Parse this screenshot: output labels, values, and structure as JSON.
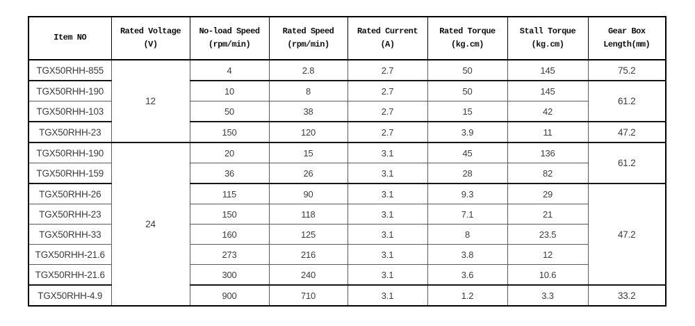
{
  "table": {
    "headers": [
      {
        "line1": "Item NO",
        "line2": ""
      },
      {
        "line1": "Rated Voltage",
        "line2": "(V)"
      },
      {
        "line1": "No-load Speed",
        "line2": "(rpm/min)"
      },
      {
        "line1": "Rated Speed",
        "line2": "(rpm/min)"
      },
      {
        "line1": "Rated Current",
        "line2": "(A)"
      },
      {
        "line1": "Rated Torque",
        "line2": "(kg.cm)"
      },
      {
        "line1": "Stall Torque",
        "line2": "(kg.cm)"
      },
      {
        "line1": "Gear Box",
        "line2": "Length(mm)"
      }
    ],
    "rows": [
      {
        "item": "TGX50RHH-855",
        "no_load_speed": "4",
        "rated_speed": "2.8",
        "rated_current": "2.7",
        "rated_torque": "50",
        "stall_torque": "145"
      },
      {
        "item": "TGX50RHH-190",
        "no_load_speed": "10",
        "rated_speed": "8",
        "rated_current": "2.7",
        "rated_torque": "50",
        "stall_torque": "145"
      },
      {
        "item": "TGX50RHH-103",
        "no_load_speed": "50",
        "rated_speed": "38",
        "rated_current": "2.7",
        "rated_torque": "15",
        "stall_torque": "42"
      },
      {
        "item": "TGX50RHH-23",
        "no_load_speed": "150",
        "rated_speed": "120",
        "rated_current": "2.7",
        "rated_torque": "3.9",
        "stall_torque": "11"
      },
      {
        "item": "TGX50RHH-190",
        "no_load_speed": "20",
        "rated_speed": "15",
        "rated_current": "3.1",
        "rated_torque": "45",
        "stall_torque": "136"
      },
      {
        "item": "TGX50RHH-159",
        "no_load_speed": "36",
        "rated_speed": "26",
        "rated_current": "3.1",
        "rated_torque": "28",
        "stall_torque": "82"
      },
      {
        "item": "TGX50RHH-26",
        "no_load_speed": "115",
        "rated_speed": "90",
        "rated_current": "3.1",
        "rated_torque": "9.3",
        "stall_torque": "29"
      },
      {
        "item": "TGX50RHH-23",
        "no_load_speed": "150",
        "rated_speed": "118",
        "rated_current": "3.1",
        "rated_torque": "7.1",
        "stall_torque": "21"
      },
      {
        "item": "TGX50RHH-33",
        "no_load_speed": "160",
        "rated_speed": "125",
        "rated_current": "3.1",
        "rated_torque": "8",
        "stall_torque": "23.5"
      },
      {
        "item": "TGX50RHH-21.6",
        "no_load_speed": "273",
        "rated_speed": "216",
        "rated_current": "3.1",
        "rated_torque": "3.8",
        "stall_torque": "12"
      },
      {
        "item": "TGX50RHH-21.6",
        "no_load_speed": "300",
        "rated_speed": "240",
        "rated_current": "3.1",
        "rated_torque": "3.6",
        "stall_torque": "10.6"
      },
      {
        "item": "TGX50RHH-4.9",
        "no_load_speed": "900",
        "rated_speed": "710",
        "rated_current": "3.1",
        "rated_torque": "1.2",
        "stall_torque": "3.3"
      }
    ],
    "voltage_groups": [
      {
        "value": "12",
        "start": 0,
        "rowspan": 4
      },
      {
        "value": "24",
        "start": 4,
        "rowspan": 8
      }
    ],
    "gear_groups": [
      {
        "value": "75.2",
        "start": 0,
        "rowspan": 1
      },
      {
        "value": "61.2",
        "start": 1,
        "rowspan": 2
      },
      {
        "value": "47.2",
        "start": 3,
        "rowspan": 1
      },
      {
        "value": "61.2",
        "start": 4,
        "rowspan": 2
      },
      {
        "value": "47.2",
        "start": 6,
        "rowspan": 5
      },
      {
        "value": "33.2",
        "start": 11,
        "rowspan": 1
      }
    ],
    "thick_row_starts": [
      1,
      3,
      4,
      6,
      11
    ],
    "colors": {
      "outer_border": "#000000",
      "inner_border": "#5a5a5a",
      "header_text": "#0d0d0d",
      "body_text": "#3c3c3c",
      "background": "#ffffff"
    }
  }
}
